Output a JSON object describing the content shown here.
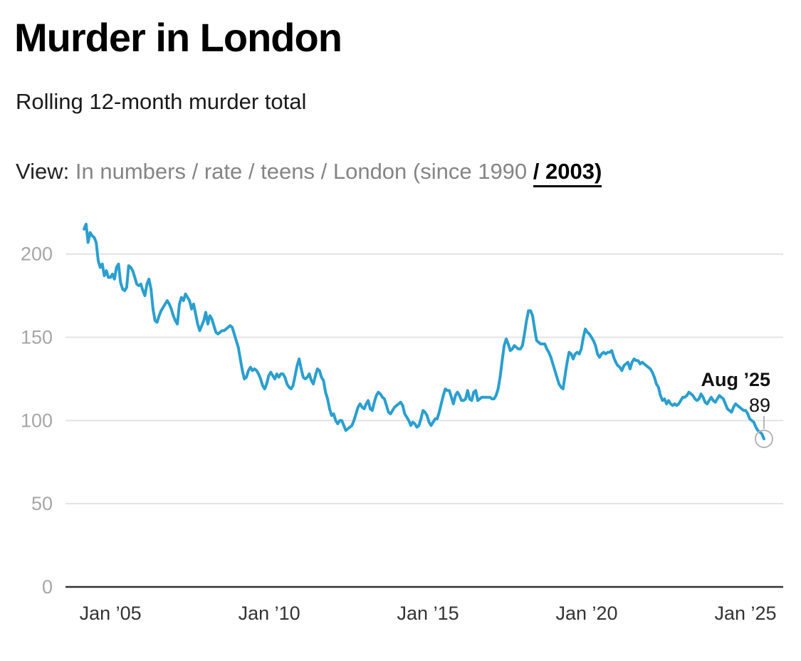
{
  "title": "Murder in London",
  "subtitle": "Rolling 12-month murder total",
  "view": {
    "label": "View:",
    "options": [
      "In numbers",
      "rate",
      "teens",
      "London (since 1990"
    ],
    "active": "/ 2003)"
  },
  "colors": {
    "line": "#2a9fcf",
    "grid": "#e3e3e3",
    "axis": "#333333",
    "marker": "#b5b5b5"
  },
  "chart_data": {
    "type": "line",
    "title": "Murder in London",
    "subtitle": "Rolling 12-month murder total",
    "xlabel": "",
    "ylabel": "",
    "ylim": [
      0,
      200
    ],
    "yticks": [
      0,
      50,
      100,
      150,
      200
    ],
    "x_tick_labels": [
      "Jan ’05",
      "Jan ’10",
      "Jan ’15",
      "Jan ’20",
      "Jan ’25"
    ],
    "grid": true,
    "x_start": "2004-03",
    "x_end": "2025-08",
    "annotation": {
      "date": "Aug ’25",
      "value": "89"
    },
    "series": [
      {
        "values": [
          215,
          218,
          207,
          213,
          211,
          210,
          207,
          196,
          192,
          194,
          187,
          190,
          186,
          186,
          188,
          185,
          192,
          194,
          183,
          179,
          178,
          180,
          193,
          192,
          190,
          186,
          182,
          181,
          182,
          178,
          175,
          182,
          185,
          179,
          167,
          160,
          159,
          163,
          166,
          168,
          170,
          172,
          170,
          167,
          163,
          160,
          158,
          170,
          174,
          172,
          176,
          174,
          172,
          167,
          170,
          164,
          158,
          154,
          157,
          160,
          165,
          158,
          163,
          161,
          157,
          153,
          152,
          153,
          154,
          154,
          155,
          156,
          157,
          156,
          152,
          148,
          144,
          137,
          130,
          125,
          126,
          130,
          132,
          130,
          131,
          130,
          128,
          125,
          121,
          119,
          122,
          127,
          129,
          127,
          125,
          128,
          126,
          128,
          128,
          126,
          122,
          120,
          119,
          121,
          127,
          133,
          137,
          131,
          126,
          125,
          126,
          128,
          124,
          122,
          127,
          131,
          130,
          126,
          124,
          117,
          113,
          107,
          103,
          104,
          100,
          98,
          100,
          100,
          97,
          94,
          95,
          96,
          97,
          100,
          104,
          108,
          110,
          108,
          107,
          110,
          112,
          107,
          106,
          111,
          115,
          117,
          116,
          114,
          113,
          109,
          105,
          104,
          106,
          108,
          109,
          110,
          111,
          109,
          104,
          102,
          100,
          97,
          99,
          98,
          96,
          97,
          101,
          106,
          105,
          103,
          99,
          97,
          99,
          101,
          101,
          105,
          110,
          115,
          119,
          118,
          118,
          114,
          110,
          115,
          117,
          115,
          112,
          112,
          113,
          118,
          113,
          112,
          117,
          118,
          112,
          113,
          114,
          114,
          114,
          114,
          114,
          113,
          113,
          115,
          119,
          126,
          136,
          145,
          149,
          146,
          142,
          143,
          145,
          144,
          143,
          143,
          145,
          152,
          160,
          166,
          166,
          163,
          155,
          148,
          147,
          146,
          146,
          146,
          143,
          141,
          138,
          134,
          130,
          126,
          122,
          120,
          119,
          127,
          135,
          141,
          140,
          137,
          140,
          141,
          140,
          143,
          150,
          155,
          153,
          152,
          150,
          148,
          145,
          140,
          138,
          140,
          141,
          140,
          141,
          141,
          142,
          138,
          135,
          133,
          132,
          130,
          133,
          134,
          135,
          131,
          135,
          137,
          136,
          136,
          134,
          135,
          134,
          133,
          132,
          131,
          129,
          126,
          122,
          120,
          115,
          112,
          113,
          110,
          112,
          110,
          109,
          110,
          109,
          110,
          112,
          114,
          114,
          115,
          117,
          116,
          115,
          113,
          112,
          113,
          116,
          114,
          111,
          110,
          112,
          114,
          112,
          111,
          113,
          115,
          114,
          113,
          110,
          107,
          106,
          105,
          108,
          110,
          109,
          108,
          107,
          106,
          106,
          104,
          101,
          100,
          99,
          96,
          94,
          93,
          92,
          89
        ]
      }
    ]
  }
}
